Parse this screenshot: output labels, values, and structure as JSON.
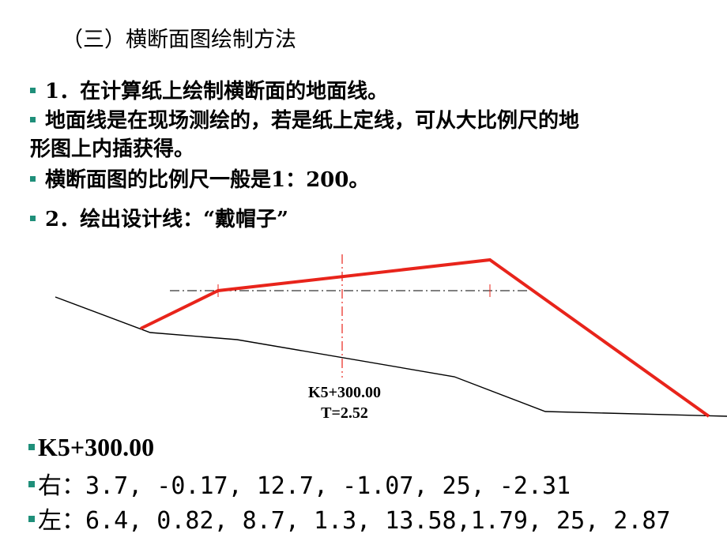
{
  "heading": "（三）横断面图绘制方法",
  "points": [
    {
      "text": "1．在计算纸上绘制横断面的地面线。"
    },
    {
      "text": "地面线是在现场测绘的，若是纸上定线，可从大比例尺的地"
    },
    {
      "text": "形图上内插获得。"
    },
    {
      "text": "横断面图的比例尺一般是1：200。"
    },
    {
      "text": "2．绘出设计线：“戴帽子”"
    }
  ],
  "diagram": {
    "station_label": "K5+300.00",
    "t_label": "T=2.52",
    "colors": {
      "design_line": "#e8241b",
      "ground_line": "#000000",
      "center_line": "#e8241b",
      "level_line": "#000000"
    }
  },
  "section": {
    "station": "K5+300.00",
    "right_label": "右",
    "right_values": "：3.7, -0.17, 12.7, -1.07, 25, -2.31",
    "left_label": "左",
    "left_values": "：6.4, 0.82, 8.7, 1.3, 13.58,1.79, 25, 2.87"
  }
}
